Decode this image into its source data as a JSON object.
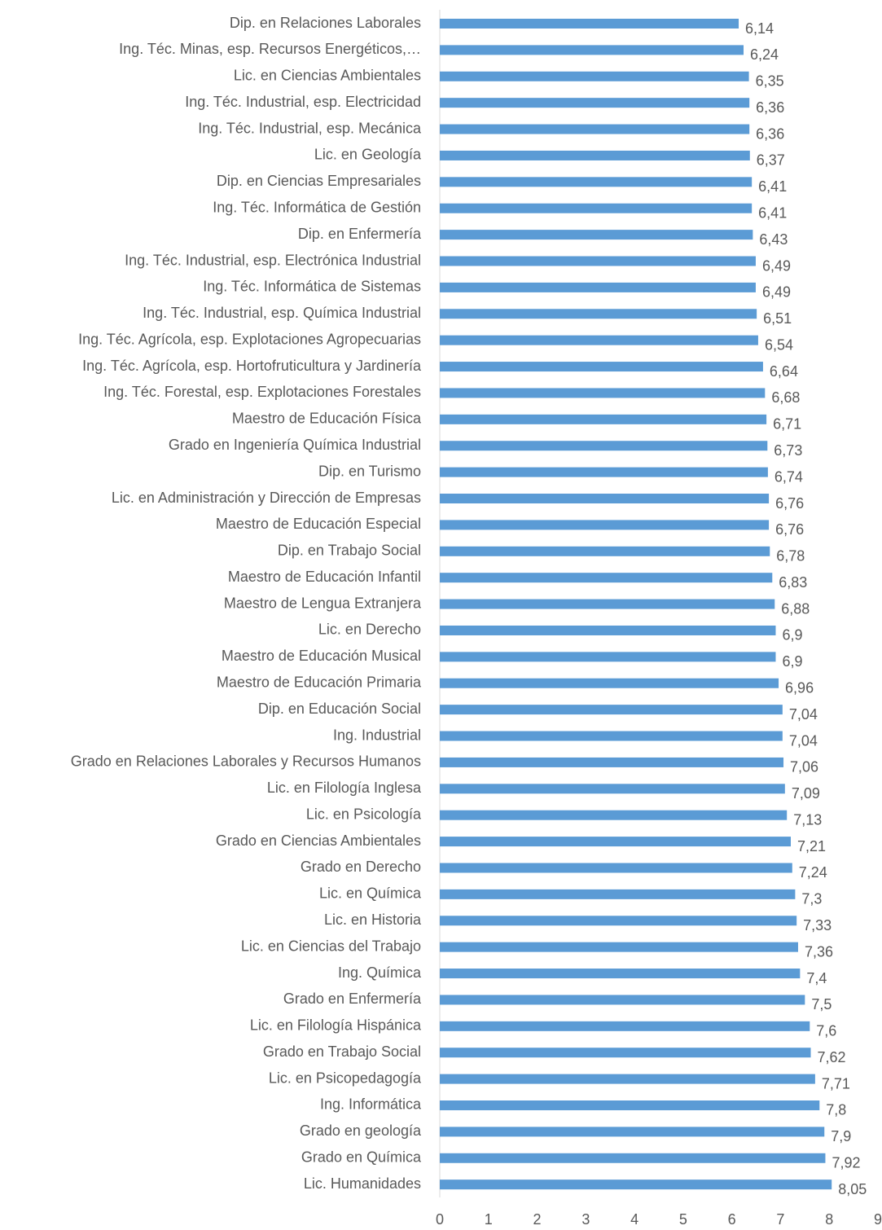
{
  "chart_data": {
    "type": "barh",
    "categories": [
      "Dip. en Relaciones Laborales",
      "Ing. Téc. Minas, esp. Recursos Energéticos,…",
      "Lic. en Ciencias Ambientales",
      "Ing. Téc. Industrial, esp. Electricidad",
      "Ing. Téc. Industrial, esp. Mecánica",
      "Lic. en Geología",
      "Dip. en Ciencias Empresariales",
      "Ing. Téc. Informática de Gestión",
      "Dip. en Enfermería",
      "Ing. Téc. Industrial, esp. Electrónica Industrial",
      "Ing. Téc. Informática de Sistemas",
      "Ing. Téc. Industrial, esp. Química Industrial",
      "Ing. Téc. Agrícola, esp. Explotaciones Agropecuarias",
      "Ing. Téc. Agrícola, esp. Hortofruticultura y Jardinería",
      "Ing. Téc. Forestal, esp. Explotaciones Forestales",
      "Maestro de Educación Física",
      "Grado en Ingeniería Química Industrial",
      "Dip. en Turismo",
      "Lic. en Administración y Dirección de Empresas",
      "Maestro de Educación Especial",
      "Dip. en Trabajo Social",
      "Maestro de Educación Infantil",
      "Maestro de Lengua Extranjera",
      "Lic. en Derecho",
      "Maestro de Educación Musical",
      "Maestro de Educación Primaria",
      "Dip. en Educación Social",
      "Ing. Industrial",
      "Grado en Relaciones Laborales y Recursos Humanos",
      "Lic. en Filología Inglesa",
      "Lic. en Psicología",
      "Grado en Ciencias Ambientales",
      "Grado en Derecho",
      "Lic. en Química",
      "Lic. en Historia",
      "Lic. en Ciencias del Trabajo",
      "Ing. Química",
      "Grado en Enfermería",
      "Lic. en Filología Hispánica",
      "Grado en Trabajo Social",
      "Lic. en Psicopedagogía",
      "Ing. Informática",
      "Grado en geología",
      "Grado en Química",
      "Lic. Humanidades"
    ],
    "values": [
      6.14,
      6.24,
      6.35,
      6.36,
      6.36,
      6.37,
      6.41,
      6.41,
      6.43,
      6.49,
      6.49,
      6.51,
      6.54,
      6.64,
      6.68,
      6.71,
      6.73,
      6.74,
      6.76,
      6.76,
      6.78,
      6.83,
      6.88,
      6.9,
      6.9,
      6.96,
      7.04,
      7.04,
      7.06,
      7.09,
      7.13,
      7.21,
      7.24,
      7.3,
      7.33,
      7.36,
      7.4,
      7.5,
      7.6,
      7.62,
      7.71,
      7.8,
      7.9,
      7.92,
      8.05
    ],
    "value_labels": [
      "6,14",
      "6,24",
      "6,35",
      "6,36",
      "6,36",
      "6,37",
      "6,41",
      "6,41",
      "6,43",
      "6,49",
      "6,49",
      "6,51",
      "6,54",
      "6,64",
      "6,68",
      "6,71",
      "6,73",
      "6,74",
      "6,76",
      "6,76",
      "6,78",
      "6,83",
      "6,88",
      "6,9",
      "6,9",
      "6,96",
      "7,04",
      "7,04",
      "7,06",
      "7,09",
      "7,13",
      "7,21",
      "7,24",
      "7,3",
      "7,33",
      "7,36",
      "7,4",
      "7,5",
      "7,6",
      "7,62",
      "7,71",
      "7,8",
      "7,9",
      "7,92",
      "8,05"
    ],
    "color": "#5b9bd5",
    "xlim": [
      0,
      9
    ],
    "xticks": [
      0,
      1,
      2,
      3,
      4,
      5,
      6,
      7,
      8,
      9
    ],
    "grid": false
  }
}
